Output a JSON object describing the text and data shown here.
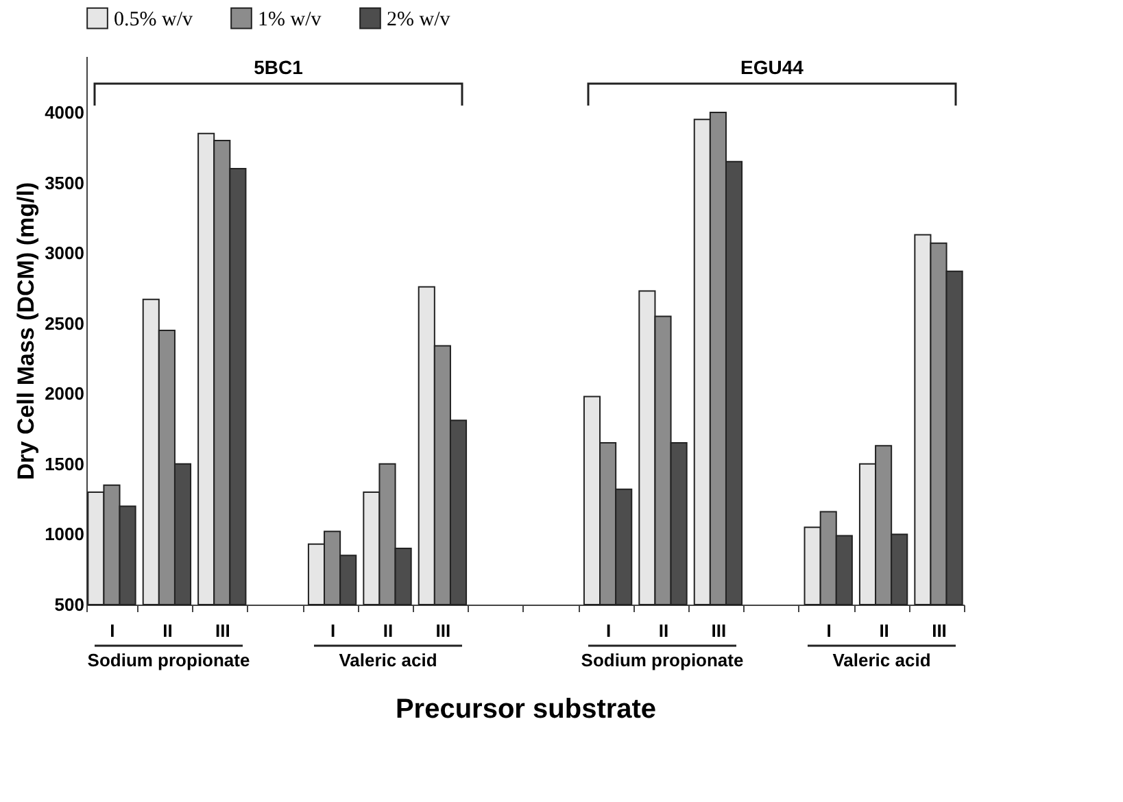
{
  "chart_data": {
    "type": "bar",
    "xlabel": "Precursor substrate",
    "ylabel": "Dry Cell Mass (DCM) (mg/l)",
    "categories": [
      "I",
      "II",
      "III",
      null,
      "I",
      "II",
      "III",
      null,
      null,
      "I",
      "II",
      "III",
      null,
      "I",
      "II",
      "III"
    ],
    "series": [
      {
        "name": "0.5% w/v",
        "color": "#e6e6e6",
        "values": [
          1300,
          2670,
          3850,
          null,
          930,
          1300,
          2760,
          null,
          null,
          1980,
          2730,
          3950,
          null,
          1050,
          1500,
          3130
        ]
      },
      {
        "name": "1% w/v",
        "color": "#8c8c8c",
        "values": [
          1350,
          2450,
          3800,
          null,
          1020,
          1500,
          2340,
          null,
          null,
          1650,
          2550,
          4000,
          null,
          1160,
          1630,
          3070
        ]
      },
      {
        "name": "2% w/v",
        "color": "#4d4d4d",
        "values": [
          1200,
          1500,
          3600,
          null,
          850,
          900,
          1810,
          null,
          null,
          1320,
          1650,
          3650,
          null,
          990,
          1000,
          2870
        ]
      }
    ],
    "ylim": [
      500,
      4400
    ],
    "yticks": [
      500,
      1000,
      1500,
      2000,
      2500,
      3000,
      3500,
      4000
    ],
    "legend": "top",
    "annotations": [
      "5BC1",
      "EGU44",
      "Sodium propionate",
      "Valeric acid",
      "Sodium propionate",
      "Valeric acid"
    ]
  }
}
